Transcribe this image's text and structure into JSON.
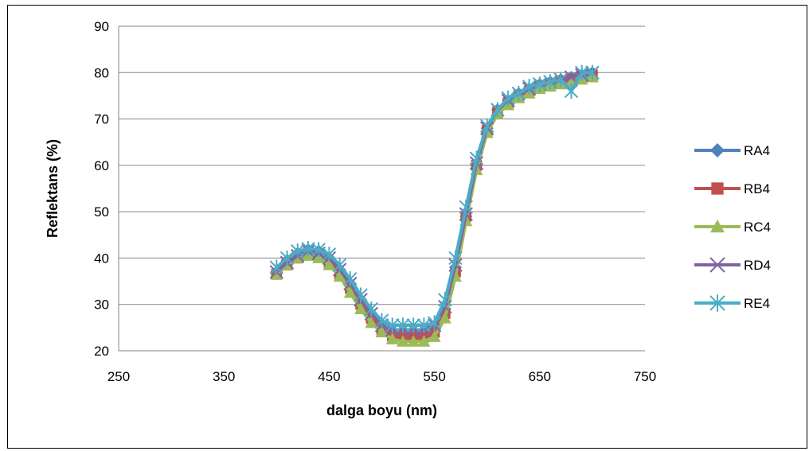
{
  "chart_data": {
    "type": "line",
    "title": "",
    "xlabel": "dalga boyu (nm)",
    "ylabel": "Reflektans (%)",
    "xlim": [
      250,
      750
    ],
    "ylim": [
      20,
      90
    ],
    "x_ticks": [
      "250",
      "350",
      "450",
      "550",
      "650",
      "750"
    ],
    "y_ticks": [
      "20",
      "30",
      "40",
      "50",
      "60",
      "70",
      "80",
      "90"
    ],
    "grid": "horizontal",
    "legend_position": "right",
    "x": [
      400,
      410,
      420,
      430,
      440,
      450,
      460,
      470,
      480,
      490,
      500,
      510,
      520,
      530,
      540,
      550,
      560,
      570,
      580,
      590,
      600,
      610,
      620,
      630,
      640,
      650,
      660,
      670,
      680,
      690,
      700
    ],
    "series": [
      {
        "name": "RA4",
        "color": "#4F81BD",
        "marker": "diamond",
        "values": [
          37,
          39.5,
          41,
          41.8,
          41.5,
          40,
          37.5,
          34.5,
          31,
          28,
          25.5,
          24,
          23.5,
          23.5,
          23.5,
          25,
          29,
          38,
          49,
          60,
          68,
          72,
          74,
          75.5,
          76.5,
          77.5,
          78,
          78.5,
          79,
          79.5,
          80
        ]
      },
      {
        "name": "RB4",
        "color": "#C0504D",
        "marker": "square",
        "values": [
          36.5,
          38.5,
          40,
          40.8,
          40.5,
          39,
          36.5,
          33.5,
          30,
          27,
          24.5,
          23.2,
          23,
          23,
          23,
          24,
          28,
          37,
          49,
          60,
          67.5,
          71.5,
          73.5,
          75,
          76,
          77,
          77.5,
          78,
          78.5,
          79,
          79.5
        ]
      },
      {
        "name": "RC4",
        "color": "#9BBB59",
        "marker": "triangle",
        "values": [
          36.5,
          38.5,
          40,
          40.5,
          40,
          38.5,
          36,
          32.5,
          29,
          26,
          24,
          22.5,
          22,
          22,
          22,
          23,
          27,
          36,
          48,
          59,
          67,
          71,
          73,
          74.5,
          75.5,
          76.5,
          77,
          77.5,
          78,
          78.5,
          79
        ]
      },
      {
        "name": "RD4",
        "color": "#8064A2",
        "marker": "x",
        "values": [
          37,
          39,
          40.5,
          41.5,
          41,
          40,
          37.5,
          34.5,
          31,
          28,
          25.5,
          24.5,
          24.5,
          24.5,
          24.5,
          25.5,
          29.5,
          38.5,
          49.5,
          60.5,
          68,
          72,
          74,
          75.5,
          76.5,
          77.5,
          78,
          78.5,
          79,
          79.5,
          80
        ]
      },
      {
        "name": "RE4",
        "color": "#4BACC6",
        "marker": "star",
        "values": [
          38,
          40,
          41.5,
          42,
          41.8,
          40.8,
          38.5,
          35.5,
          32,
          29,
          26.5,
          25.5,
          25.5,
          25.5,
          25.5,
          26,
          31,
          40,
          51,
          61.5,
          68.5,
          72,
          74.5,
          75.5,
          77,
          77.5,
          78,
          78.5,
          76,
          80,
          80
        ]
      }
    ]
  }
}
